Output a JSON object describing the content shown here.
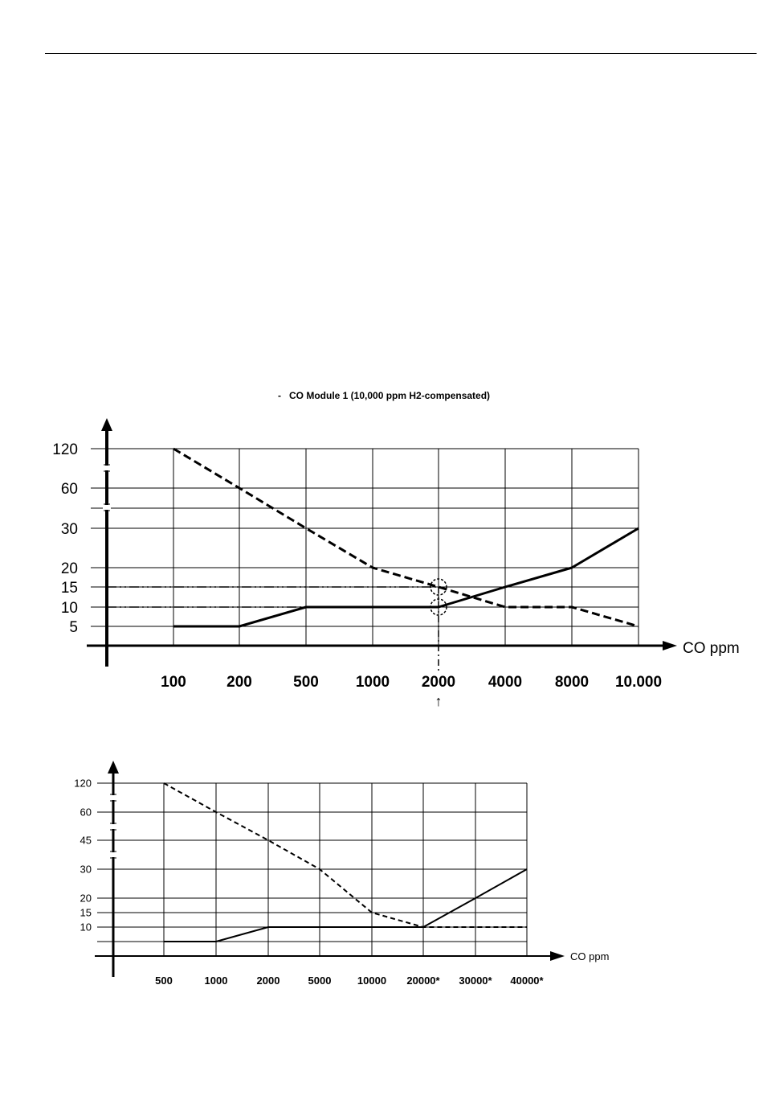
{
  "chart_data": [
    {
      "type": "line",
      "title": "-   CO Module 1 (10,000 ppm H2-compensated)",
      "x_axis_title": "CO ppm",
      "categories": [
        "100",
        "200",
        "500",
        "1000",
        "2000",
        "4000",
        "8000",
        "10.000"
      ],
      "y_ticks": [
        "120",
        "60",
        "30",
        "20",
        "15",
        "10",
        "5"
      ],
      "series": [
        {
          "style": "dashed",
          "values": [
            120,
            60,
            30,
            20,
            15,
            10,
            10,
            5
          ]
        },
        {
          "style": "solid",
          "values": [
            5,
            5,
            10,
            10,
            10,
            15,
            20,
            30
          ]
        }
      ],
      "reference_lines": [
        15,
        10
      ],
      "marked_category": "2000",
      "marker_symbol": "↑",
      "grid": true
    },
    {
      "type": "line",
      "x_axis_title": "CO ppm",
      "categories": [
        "500",
        "1000",
        "2000",
        "5000",
        "10000",
        "20000*",
        "30000*",
        "40000*"
      ],
      "y_ticks": [
        "120",
        "60",
        "45",
        "30",
        "20",
        "15",
        "10"
      ],
      "series": [
        {
          "style": "dashed",
          "values": [
            120,
            60,
            45,
            30,
            15,
            10,
            10,
            10
          ]
        },
        {
          "style": "solid",
          "values": [
            5,
            5,
            10,
            10,
            10,
            10,
            20,
            30
          ]
        }
      ],
      "grid": true
    }
  ]
}
